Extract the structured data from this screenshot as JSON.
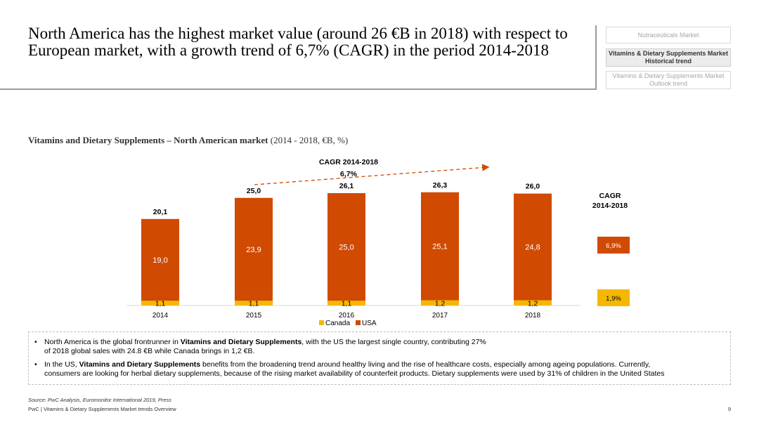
{
  "title": "North America has the highest market value (around 26 €B in 2018) with respect to European market, with a growth trend of 6,7% (CAGR) in the period 2014-2018",
  "nav": [
    {
      "label": "Nutraceuticals Market",
      "active": false
    },
    {
      "label": "Vitamins & Dietary Supplements Market Historical trend",
      "active": true
    },
    {
      "label": "Vitamins & Dietary Supplements Market Outlook trend",
      "active": false
    }
  ],
  "chart_heading": {
    "main": "Vitamins and Dietary Supplements – North American market",
    "unit": "(2014 - 2018, €B, %)"
  },
  "chart_data": {
    "type": "bar",
    "stacked": true,
    "categories": [
      "2014",
      "2015",
      "2016",
      "2017",
      "2018"
    ],
    "series": [
      {
        "name": "Canada",
        "values": [
          1.1,
          1.1,
          1.1,
          1.2,
          1.2
        ],
        "labels": [
          "1,1",
          "1,1",
          "1,1",
          "1,2",
          "1,2"
        ],
        "color": "#F5B800"
      },
      {
        "name": "USA",
        "values": [
          19.0,
          23.9,
          25.0,
          25.1,
          24.8
        ],
        "labels": [
          "19,0",
          "23,9",
          "25,0",
          "25,1",
          "24,8"
        ],
        "color": "#D04A02"
      }
    ],
    "totals": [
      20.1,
      25.0,
      26.1,
      26.3,
      26.0
    ],
    "total_labels": [
      "20,1",
      "25,0",
      "26,1",
      "26,3",
      "26,0"
    ],
    "ylim": [
      0,
      30
    ],
    "cagr_trend": {
      "label": "CAGR 2014-2018",
      "value": "6,7%"
    },
    "cagr_side": {
      "label_line1": "CAGR",
      "label_line2": "2014-2018",
      "usa": "6,9%",
      "canada": "1,9%"
    },
    "legend_position": "bottom"
  },
  "bullets": [
    {
      "before": "North America is the global frontrunner in ",
      "bold": "Vitamins and Dietary Supplements",
      "after": ", with the US the largest single country, contributing 27%",
      "line2": "of 2018 global sales with 24.8 €B while Canada brings in 1,2 €B."
    },
    {
      "before": "In the US, ",
      "bold": "Vitamins and Dietary Supplements",
      "after": " benefits from the broadening trend around healthy living and the rise of healthcare costs, especially among ageing populations. Currently,",
      "line2": "consumers are looking for herbal dietary supplements, because of the rising market availability of counterfeit products. Dietary supplements were used by 31% of children in the United States"
    }
  ],
  "source": "Source: PwC Analysis, Euromonitor International 2019, Press",
  "footer": "PwC | Vitamins & Dietary Supplements Market trends Overview",
  "page_number": "9"
}
